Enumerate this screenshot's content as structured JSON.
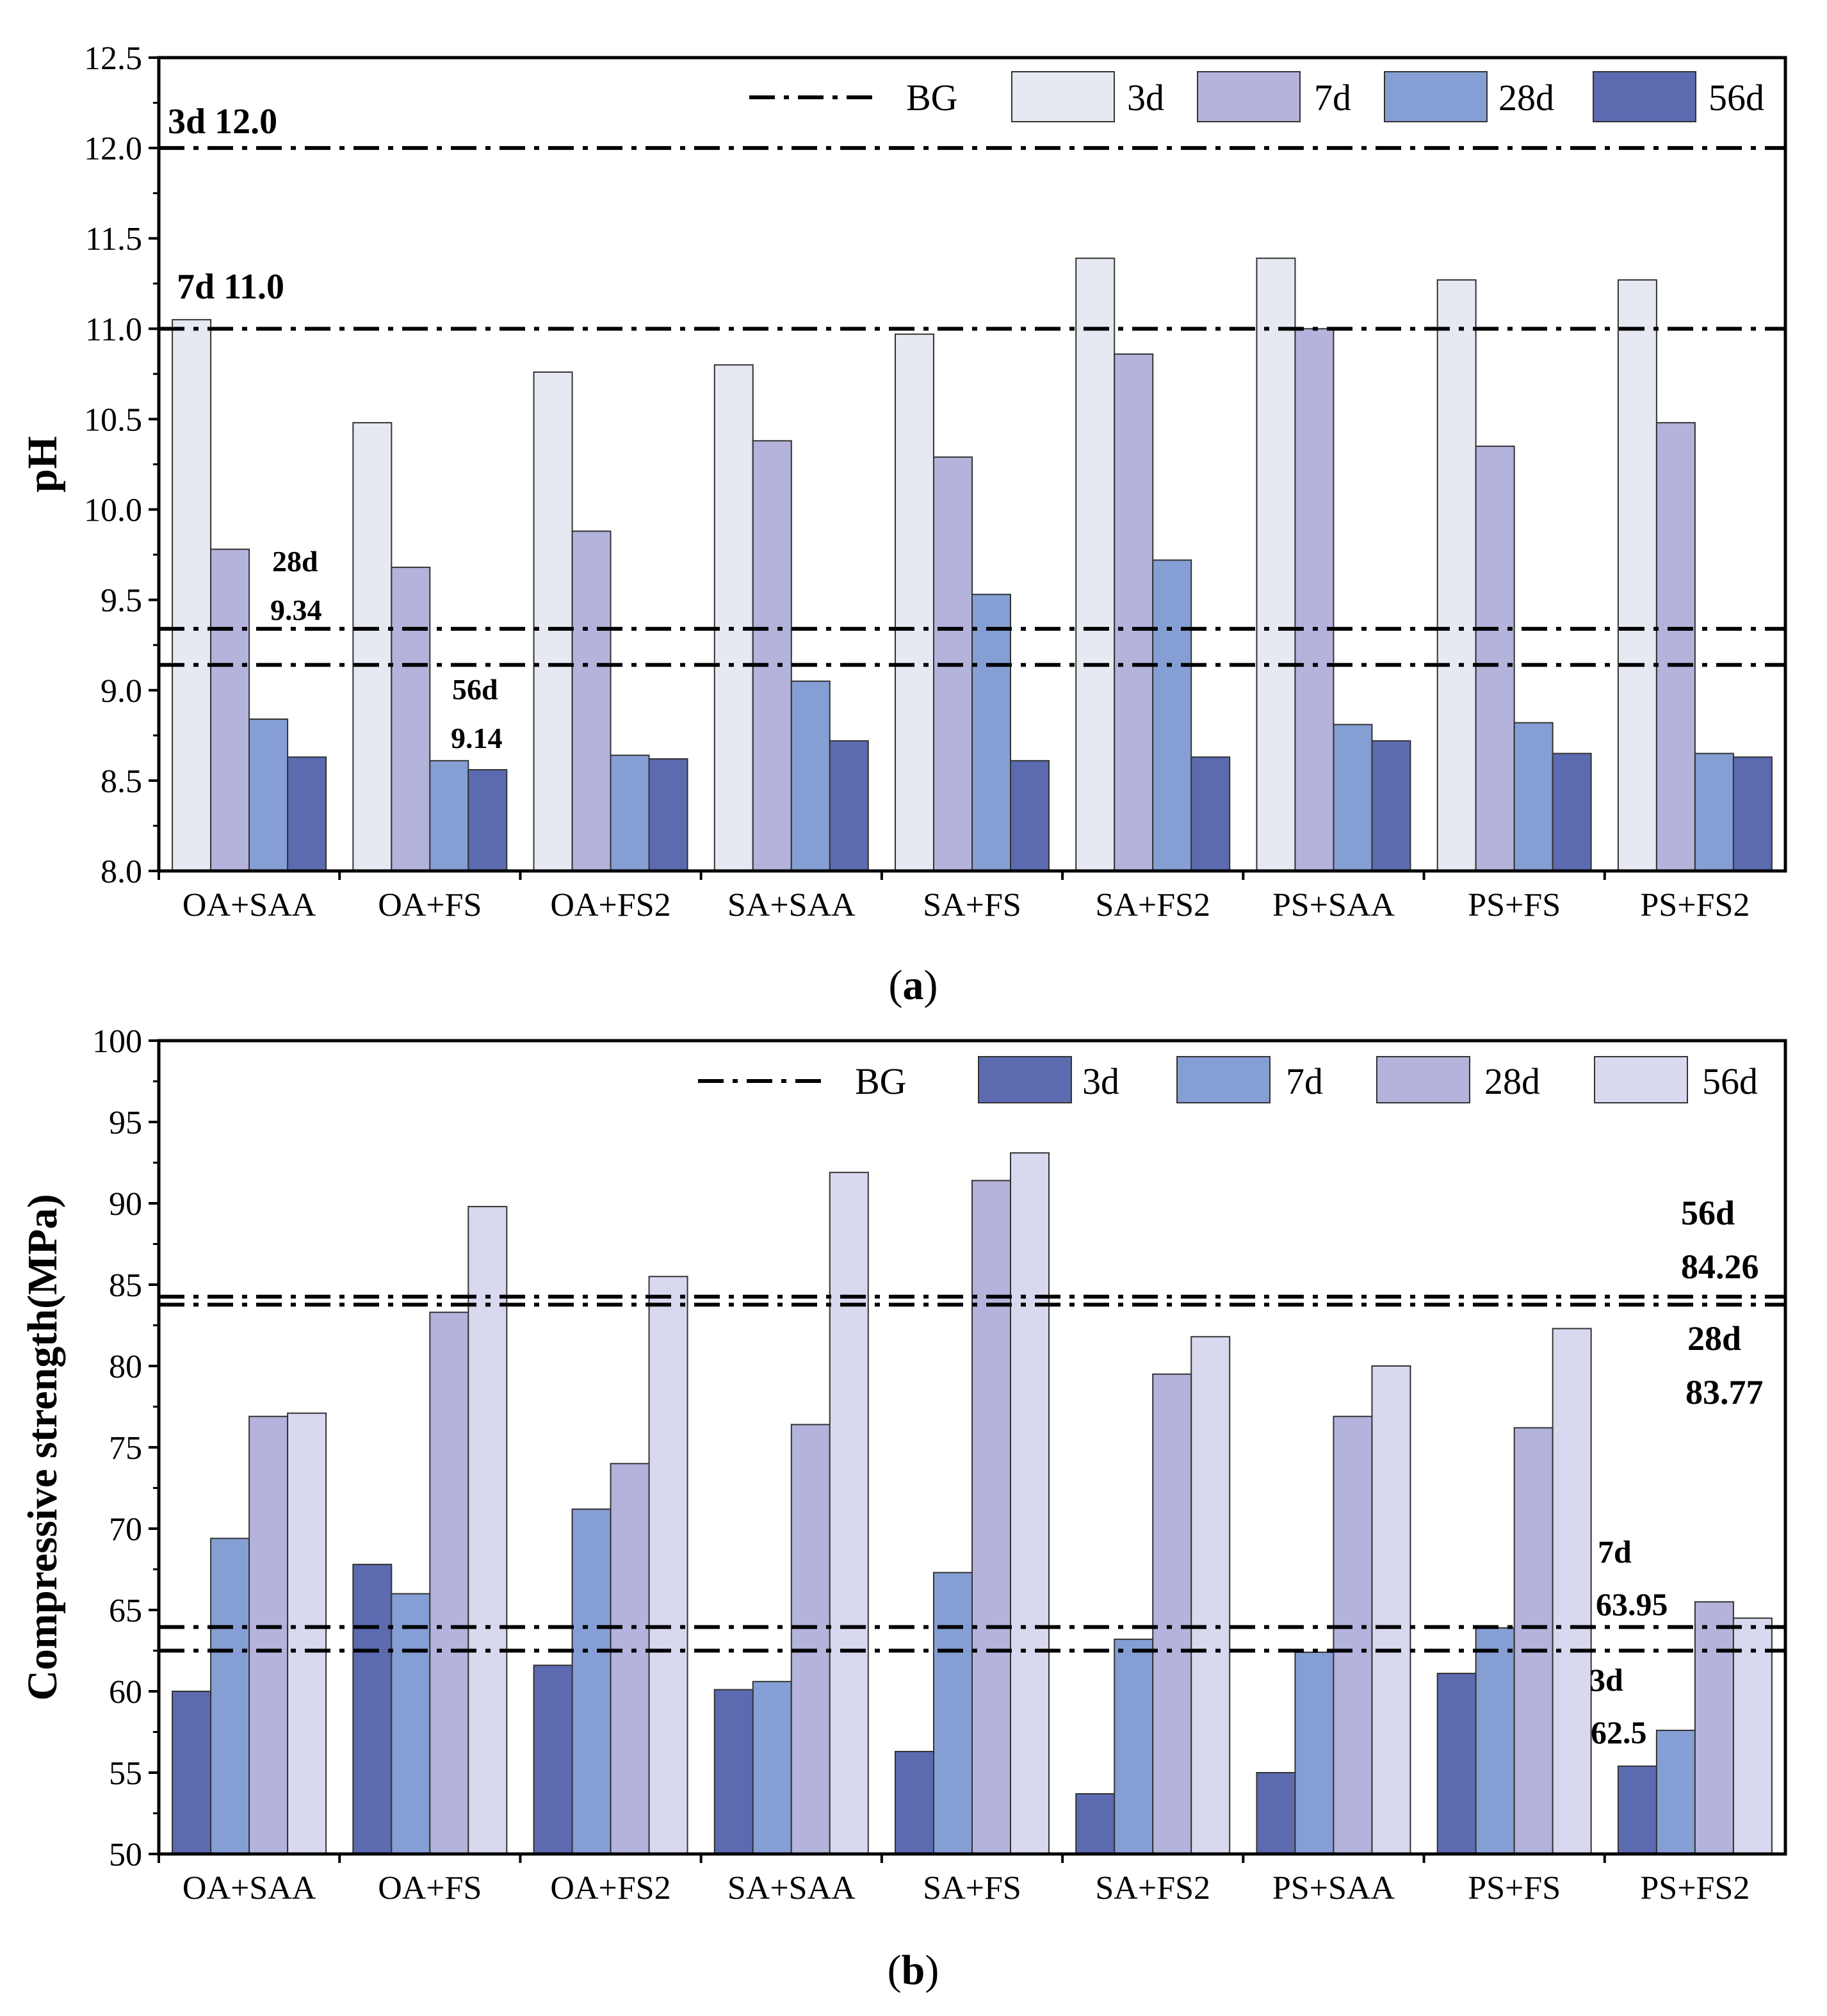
{
  "chart_data": [
    {
      "type": "bar",
      "panel_label": "a",
      "ylabel": "pH",
      "xlabel": "",
      "ylim": [
        8.0,
        12.5
      ],
      "ytick_step": 0.5,
      "ytick_decimals": 1,
      "categories": [
        "OA+SAA",
        "OA+FS",
        "OA+FS2",
        "SA+SAA",
        "SA+FS",
        "SA+FS2",
        "PS+SAA",
        "PS+FS",
        "PS+FS2"
      ],
      "series": [
        {
          "name": "3d",
          "color": "#e6e9f2",
          "values": [
            11.05,
            10.48,
            10.76,
            10.8,
            10.97,
            11.39,
            11.39,
            11.27,
            11.27
          ]
        },
        {
          "name": "7d",
          "color": "#b4b3dc",
          "values": [
            9.78,
            9.68,
            9.88,
            10.38,
            10.29,
            10.86,
            11.0,
            10.35,
            10.48
          ]
        },
        {
          "name": "28d",
          "color": "#859fd4",
          "values": [
            8.84,
            8.61,
            8.64,
            9.05,
            9.53,
            9.72,
            8.81,
            8.82,
            8.65
          ]
        },
        {
          "name": "56d",
          "color": "#5c6ab0",
          "values": [
            8.63,
            8.56,
            8.62,
            8.72,
            8.61,
            8.63,
            8.72,
            8.65,
            8.63
          ]
        }
      ],
      "baseline_legend_label": "BG",
      "baselines": [
        {
          "value": 12.0,
          "label": "3d 12.0"
        },
        {
          "value": 11.0,
          "label": "7d 11.0"
        },
        {
          "value": 9.34,
          "label_line1": "28d",
          "label_line2": "9.34"
        },
        {
          "value": 9.14,
          "label_line1": "56d",
          "label_line2": "9.14"
        }
      ]
    },
    {
      "type": "bar",
      "panel_label": "b",
      "ylabel": "Compressive strength(MPa)",
      "xlabel": "",
      "ylim": [
        50,
        100
      ],
      "ytick_step": 5,
      "ytick_decimals": 0,
      "categories": [
        "OA+SAA",
        "OA+FS",
        "OA+FS2",
        "SA+SAA",
        "SA+FS",
        "SA+FS2",
        "PS+SAA",
        "PS+FS",
        "PS+FS2"
      ],
      "series": [
        {
          "name": "3d",
          "color": "#5c6ab0",
          "values": [
            60.0,
            67.8,
            61.6,
            60.1,
            56.3,
            53.7,
            55.0,
            61.1,
            55.4
          ]
        },
        {
          "name": "7d",
          "color": "#859fd4",
          "values": [
            69.4,
            66.0,
            71.2,
            60.6,
            67.3,
            63.2,
            62.4,
            63.9,
            57.6
          ]
        },
        {
          "name": "28d",
          "color": "#b4b3dc",
          "values": [
            76.9,
            83.3,
            74.0,
            76.4,
            91.4,
            79.5,
            76.9,
            76.2,
            65.5
          ]
        },
        {
          "name": "56d",
          "color": "#d8d8ef",
          "values": [
            77.1,
            89.8,
            85.5,
            91.9,
            93.1,
            81.8,
            80.0,
            82.3,
            64.5
          ]
        }
      ],
      "baseline_legend_label": "BG",
      "baselines": [
        {
          "value": 84.26,
          "label_line1": "56d",
          "label_line2": "84.26"
        },
        {
          "value": 83.77,
          "label_line1": "28d",
          "label_line2": "83.77"
        },
        {
          "value": 63.95,
          "label_line1": "7d",
          "label_line2": "63.95"
        },
        {
          "value": 62.5,
          "label_line1": "3d",
          "label_line2": "62.5"
        }
      ]
    }
  ]
}
